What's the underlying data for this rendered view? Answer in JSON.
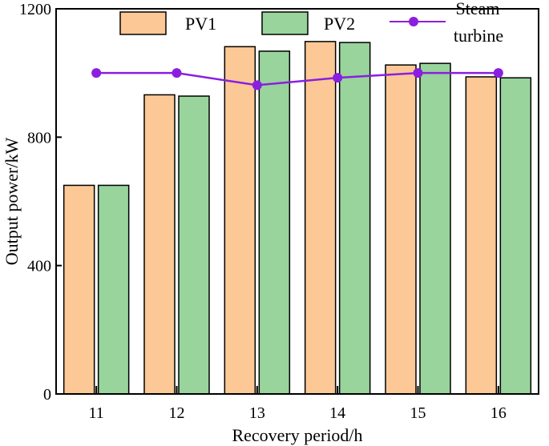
{
  "chart_data": {
    "type": "bar",
    "title": "",
    "xlabel": "Recovery period/h",
    "ylabel": "Output power/kW",
    "categories": [
      "11",
      "12",
      "13",
      "14",
      "15",
      "16"
    ],
    "ylim": [
      0,
      1200
    ],
    "yticks": [
      "0",
      "400",
      "800",
      "1200"
    ],
    "series": [
      {
        "name": "PV1",
        "kind": "bar",
        "color": "#FBC896",
        "values": [
          650,
          932,
          1082,
          1098,
          1025,
          988
        ]
      },
      {
        "name": "PV2",
        "kind": "bar",
        "color": "#98D49C",
        "values": [
          650,
          928,
          1068,
          1095,
          1030,
          985
        ]
      },
      {
        "name": "Steam turbine",
        "kind": "line",
        "color": "#8A1FE0",
        "values": [
          1000,
          1000,
          962,
          985,
          1000,
          1000
        ]
      }
    ],
    "legend": {
      "position": "top",
      "entries": [
        {
          "label": "PV1"
        },
        {
          "label": "PV2"
        },
        {
          "label_line1": "Steam",
          "label_line2": "turbine"
        }
      ]
    },
    "grid": false
  }
}
